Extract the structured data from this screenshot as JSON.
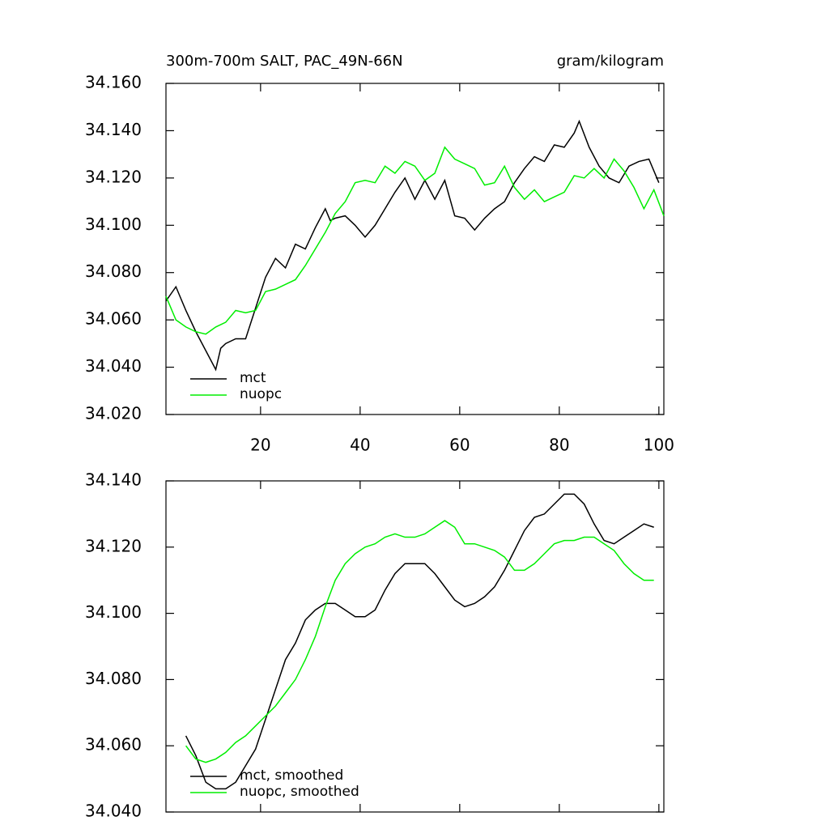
{
  "chart_data": [
    {
      "type": "line",
      "title": "300m-700m SALT, PAC_49N-66N",
      "units": "gram/kilogram",
      "xlim": [
        1,
        101
      ],
      "xticks": [
        20,
        40,
        60,
        80,
        100
      ],
      "show_xtick_labels": true,
      "ylim": [
        34.02,
        34.16
      ],
      "yticks": [
        {
          "value": 34.02,
          "label": "34.020"
        },
        {
          "value": 34.04,
          "label": "34.040"
        },
        {
          "value": 34.06,
          "label": "34.060"
        },
        {
          "value": 34.08,
          "label": "34.080"
        },
        {
          "value": 34.1,
          "label": "34.100"
        },
        {
          "value": 34.12,
          "label": "34.120"
        },
        {
          "value": 34.14,
          "label": "34.140"
        },
        {
          "value": 34.16,
          "label": "34.160"
        }
      ],
      "series": [
        {
          "name": "mct",
          "color": "#000000",
          "x": [
            1,
            3,
            5,
            7,
            9,
            11,
            12,
            13,
            15,
            17,
            19,
            21,
            23,
            25,
            27,
            29,
            31,
            33,
            34,
            35,
            37,
            39,
            41,
            43,
            45,
            47,
            49,
            51,
            53,
            55,
            57,
            59,
            61,
            63,
            65,
            67,
            69,
            71,
            73,
            75,
            77,
            79,
            81,
            83,
            84,
            86,
            88,
            90,
            92,
            94,
            96,
            98,
            100
          ],
          "values": [
            34.068,
            34.074,
            34.064,
            34.055,
            34.047,
            34.039,
            34.048,
            34.05,
            34.052,
            34.052,
            34.065,
            34.078,
            34.086,
            34.082,
            34.092,
            34.09,
            34.099,
            34.107,
            34.102,
            34.103,
            34.104,
            34.1,
            34.095,
            34.1,
            34.107,
            34.114,
            34.12,
            34.111,
            34.119,
            34.111,
            34.119,
            34.104,
            34.103,
            34.098,
            34.103,
            34.107,
            34.11,
            34.118,
            34.124,
            34.129,
            34.127,
            34.134,
            34.133,
            34.139,
            34.144,
            34.133,
            34.125,
            34.12,
            34.118,
            34.125,
            34.127,
            34.128,
            34.118
          ]
        },
        {
          "name": "nuopc",
          "color": "#00ee00",
          "x": [
            1,
            3,
            5,
            7,
            9,
            11,
            13,
            15,
            17,
            19,
            21,
            23,
            25,
            27,
            29,
            31,
            33,
            35,
            37,
            39,
            41,
            43,
            45,
            47,
            49,
            51,
            53,
            55,
            57,
            59,
            61,
            63,
            65,
            67,
            69,
            71,
            73,
            75,
            77,
            79,
            81,
            83,
            85,
            87,
            89,
            91,
            93,
            95,
            97,
            99,
            101
          ],
          "values": [
            34.07,
            34.06,
            34.057,
            34.055,
            34.054,
            34.057,
            34.059,
            34.064,
            34.063,
            34.064,
            34.072,
            34.073,
            34.075,
            34.077,
            34.083,
            34.09,
            34.097,
            34.105,
            34.11,
            34.118,
            34.119,
            34.118,
            34.125,
            34.122,
            34.127,
            34.125,
            34.119,
            34.122,
            34.133,
            34.128,
            34.126,
            34.124,
            34.117,
            34.118,
            34.125,
            34.116,
            34.111,
            34.115,
            34.11,
            34.112,
            34.114,
            34.121,
            34.12,
            34.124,
            34.12,
            34.128,
            34.123,
            34.116,
            34.107,
            34.115,
            34.104
          ]
        }
      ]
    },
    {
      "type": "line",
      "xlim": [
        1,
        101
      ],
      "xticks": [
        20,
        40,
        60,
        80,
        100
      ],
      "show_xtick_labels": false,
      "ylim": [
        34.04,
        34.14
      ],
      "yticks": [
        {
          "value": 34.04,
          "label": "34.040"
        },
        {
          "value": 34.06,
          "label": "34.060"
        },
        {
          "value": 34.08,
          "label": "34.080"
        },
        {
          "value": 34.1,
          "label": "34.100"
        },
        {
          "value": 34.12,
          "label": "34.120"
        },
        {
          "value": 34.14,
          "label": "34.140"
        }
      ],
      "series": [
        {
          "name": "mct, smoothed",
          "color": "#000000",
          "x": [
            5,
            7,
            9,
            11,
            13,
            15,
            17,
            19,
            21,
            23,
            25,
            27,
            29,
            31,
            33,
            35,
            37,
            39,
            41,
            43,
            45,
            47,
            49,
            51,
            53,
            55,
            57,
            59,
            61,
            63,
            65,
            67,
            69,
            71,
            73,
            75,
            77,
            79,
            81,
            83,
            85,
            87,
            89,
            91,
            93,
            95,
            97,
            99
          ],
          "values": [
            34.063,
            34.057,
            34.049,
            34.047,
            34.047,
            34.049,
            34.054,
            34.059,
            34.068,
            34.077,
            34.086,
            34.091,
            34.098,
            34.101,
            34.103,
            34.103,
            34.101,
            34.099,
            34.099,
            34.101,
            34.107,
            34.112,
            34.115,
            34.115,
            34.115,
            34.112,
            34.108,
            34.104,
            34.102,
            34.103,
            34.105,
            34.108,
            34.113,
            34.119,
            34.125,
            34.129,
            34.13,
            34.133,
            34.136,
            34.136,
            34.133,
            34.127,
            34.122,
            34.121,
            34.123,
            34.125,
            34.127,
            34.126
          ]
        },
        {
          "name": "nuopc, smoothed",
          "color": "#00ee00",
          "x": [
            5,
            7,
            9,
            11,
            13,
            15,
            17,
            19,
            21,
            23,
            25,
            27,
            29,
            31,
            33,
            35,
            37,
            39,
            41,
            43,
            45,
            47,
            49,
            51,
            53,
            55,
            57,
            59,
            61,
            63,
            65,
            67,
            69,
            71,
            73,
            75,
            77,
            79,
            81,
            83,
            85,
            87,
            89,
            91,
            93,
            95,
            97,
            99
          ],
          "values": [
            34.06,
            34.056,
            34.055,
            34.056,
            34.058,
            34.061,
            34.063,
            34.066,
            34.069,
            34.072,
            34.076,
            34.08,
            34.086,
            34.093,
            34.102,
            34.11,
            34.115,
            34.118,
            34.12,
            34.121,
            34.123,
            34.124,
            34.123,
            34.123,
            34.124,
            34.126,
            34.128,
            34.126,
            34.121,
            34.121,
            34.12,
            34.119,
            34.117,
            34.113,
            34.113,
            34.115,
            34.118,
            34.121,
            34.122,
            34.122,
            34.123,
            34.123,
            34.121,
            34.119,
            34.115,
            34.112,
            34.11,
            34.11
          ]
        }
      ]
    }
  ]
}
